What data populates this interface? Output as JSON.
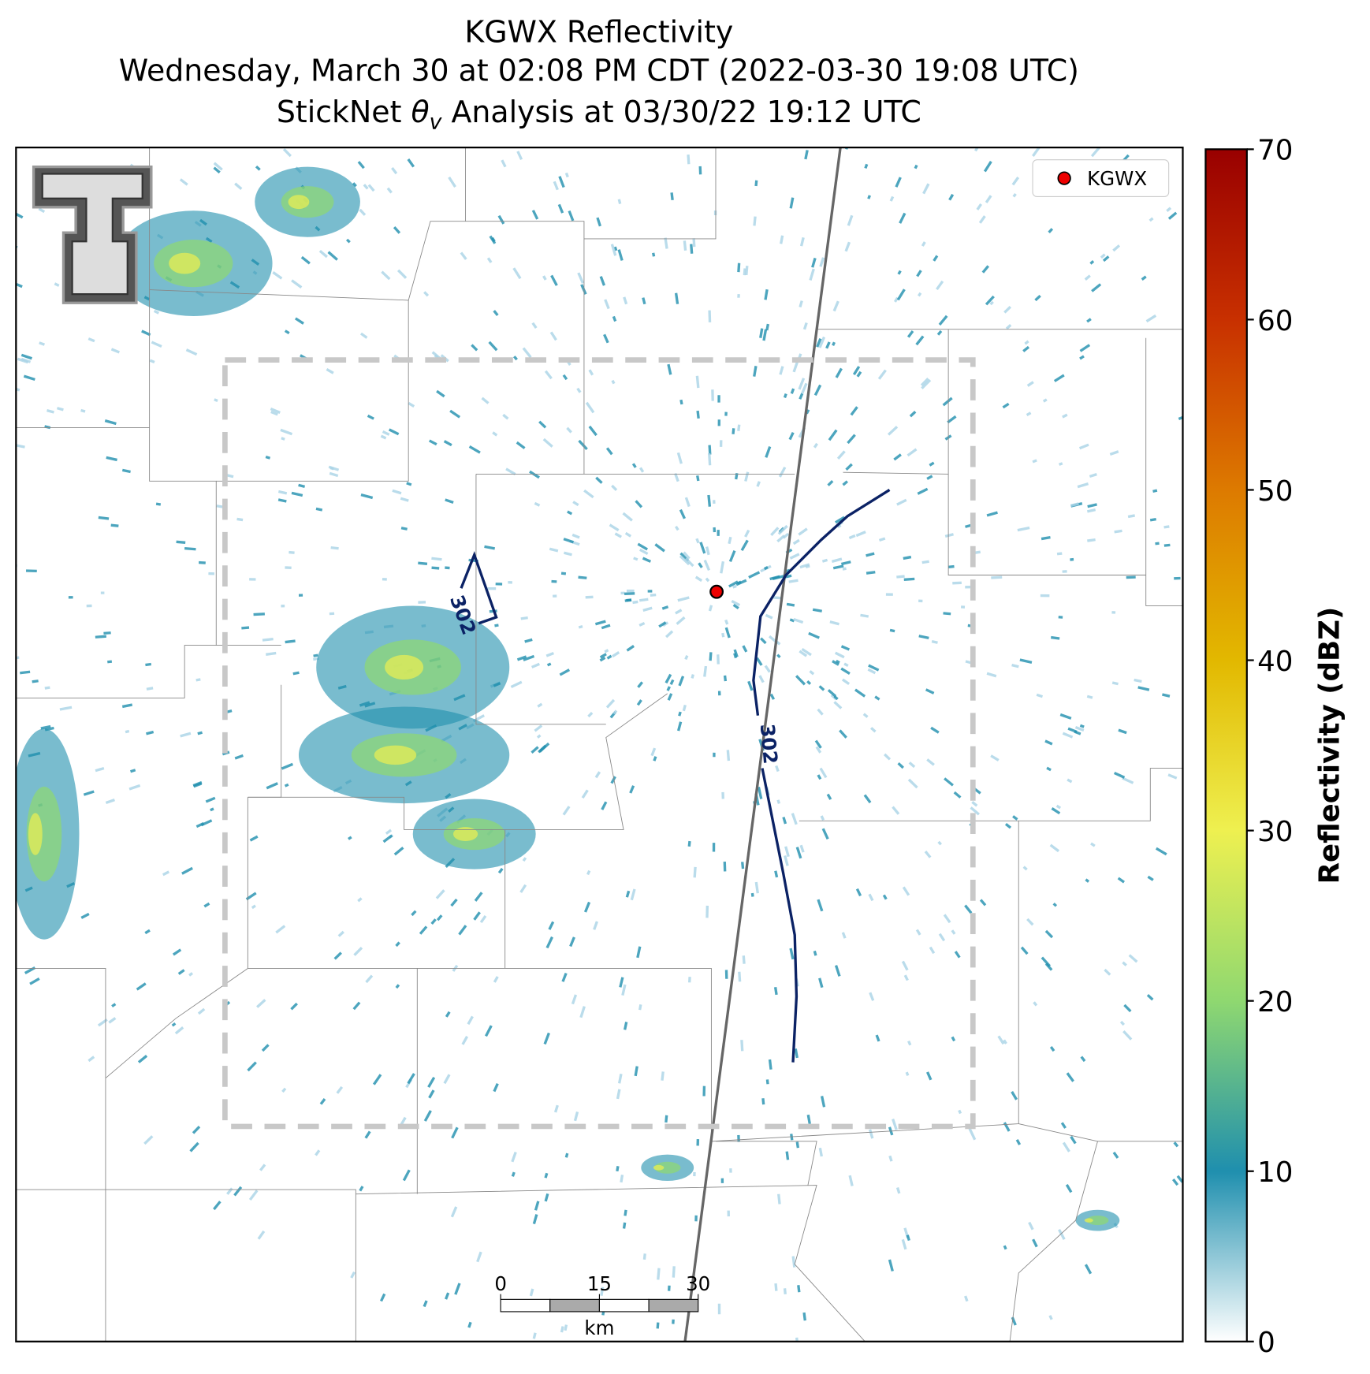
{
  "title_lines": [
    "KGWX Reflectivity",
    "Wednesday, March 30 at 02:08 PM CDT (2022-03-30 19:08 UTC)"
  ],
  "analysis_title": {
    "prefix": "StickNet ",
    "symbol": "θ",
    "subscript": "v",
    "suffix": " Analysis at 03/30/22 19:12 UTC"
  },
  "legend": {
    "label": "KGWX",
    "color": "#ee0000"
  },
  "contours": [
    {
      "level": 302,
      "color": "#0b2265"
    }
  ],
  "scale_bar": {
    "ticks": [
      0,
      15,
      30
    ],
    "unit": "km"
  },
  "colorbar": {
    "label": "Reflectivity (dBZ)",
    "lim": [
      0,
      70
    ],
    "ticks": [
      0,
      10,
      20,
      30,
      40,
      50,
      60,
      70
    ],
    "colors": [
      "#ffffff",
      "#1f8fae",
      "#8fd870",
      "#eef050",
      "#e2b800",
      "#dd7a00",
      "#c83000",
      "#990000"
    ]
  }
}
